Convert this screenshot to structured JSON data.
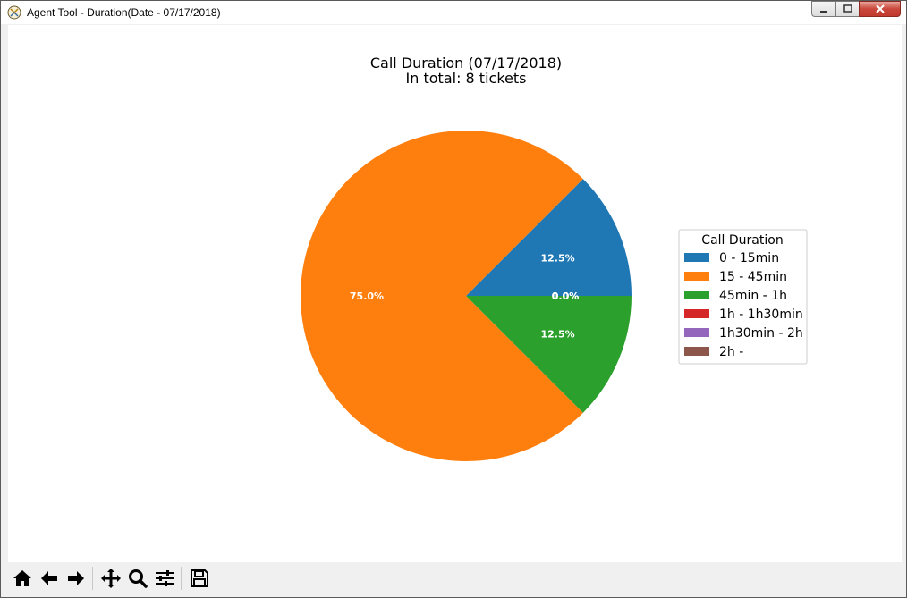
{
  "window": {
    "title": "Agent Tool - Duration(Date - 07/17/2018)",
    "icon": "app-icon"
  },
  "toolbar": {
    "buttons": [
      "home-icon",
      "back-arrow-icon",
      "forward-arrow-icon",
      "pan-icon",
      "zoom-icon",
      "subplots-icon",
      "save-icon"
    ],
    "status": ""
  },
  "chart_data": {
    "type": "pie",
    "title": "Call Duration (07/17/2018)",
    "subtitle": "In total: 8 tickets",
    "legend_title": "Call Duration",
    "legend_placement": "right",
    "start_angle": 0,
    "direction": "counterclockwise",
    "slices": [
      {
        "label": "0 - 15min",
        "value": 1,
        "percent_label": "12.5%",
        "color": "#1f77b4"
      },
      {
        "label": "15 - 45min",
        "value": 6,
        "percent_label": "75.0%",
        "color": "#ff7f0e"
      },
      {
        "label": "45min - 1h",
        "value": 1,
        "percent_label": "12.5%",
        "color": "#2ca02c"
      },
      {
        "label": "1h - 1h30min",
        "value": 0,
        "percent_label": "0.0%",
        "color": "#d62728"
      },
      {
        "label": "1h30min - 2h",
        "value": 0,
        "percent_label": "0.0%",
        "color": "#9467bd"
      },
      {
        "label": "2h -",
        "value": 0,
        "percent_label": "0.0%",
        "color": "#8c564b"
      }
    ]
  }
}
